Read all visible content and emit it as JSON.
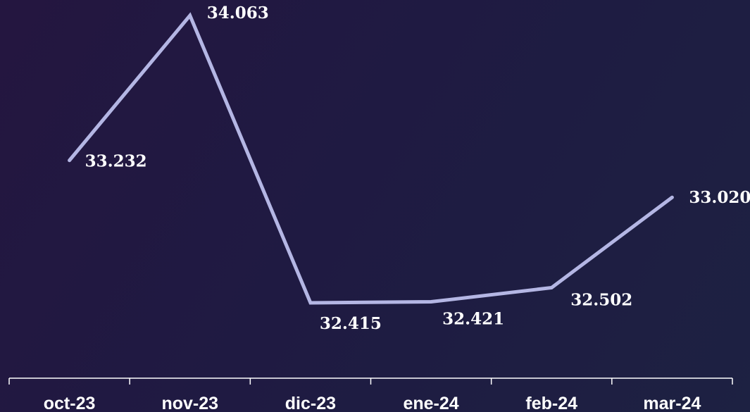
{
  "chart_data": {
    "type": "line",
    "categories": [
      "oct-23",
      "nov-23",
      "dic-23",
      "ene-24",
      "feb-24",
      "mar-24"
    ],
    "series": [
      {
        "values": [
          33.232,
          34.063,
          32.415,
          32.421,
          32.502,
          33.02
        ],
        "labels": [
          "33.232",
          "34.063",
          "32.415",
          "32.421",
          "32.502",
          "33.020"
        ]
      }
    ],
    "title": "",
    "xlabel": "",
    "ylabel": "",
    "grid": false,
    "legend": "none",
    "colors": {
      "line": "#b4b6e4",
      "axis": "#ffffff",
      "text": "#ffffff",
      "background_start": "#241640",
      "background_end": "#1d2142"
    }
  }
}
